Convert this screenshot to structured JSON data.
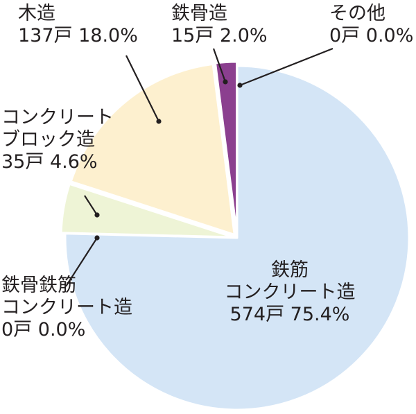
{
  "chart_data": {
    "type": "pie",
    "title": "",
    "start": "12 o'clock",
    "direction": "clockwise",
    "slices": [
      {
        "name": "鉄筋コンクリート造",
        "name_lines": [
          "鉄筋",
          "コンクリート造"
        ],
        "count": 574,
        "count_label": "574戸",
        "percent": 75.4,
        "percent_label": "75.4%",
        "color": "#d4e5f6"
      },
      {
        "name": "鉄骨鉄筋コンクリート造",
        "name_lines": [
          "鉄骨鉄筋",
          "コンクリート造"
        ],
        "count": 0,
        "count_label": "0戸",
        "percent": 0.0,
        "percent_label": "0.0%",
        "color": "#d4e5f6"
      },
      {
        "name": "コンクリートブロック造",
        "name_lines": [
          "コンクリート",
          "ブロック造"
        ],
        "count": 35,
        "count_label": "35戸",
        "percent": 4.6,
        "percent_label": "4.6%",
        "color": "#eef4d6"
      },
      {
        "name": "木造",
        "name_lines": [
          "木造"
        ],
        "count": 137,
        "count_label": "137戸",
        "percent": 18.0,
        "percent_label": "18.0%",
        "color": "#fdf0cf"
      },
      {
        "name": "鉄骨造",
        "name_lines": [
          "鉄骨造"
        ],
        "count": 15,
        "count_label": "15戸",
        "percent": 2.0,
        "percent_label": "2.0%",
        "color": "#8b3f8f"
      },
      {
        "name": "その他",
        "name_lines": [
          "その他"
        ],
        "count": 0,
        "count_label": "0戸",
        "percent": 0.0,
        "percent_label": "0.0%",
        "color": "#8b3f8f"
      }
    ]
  }
}
